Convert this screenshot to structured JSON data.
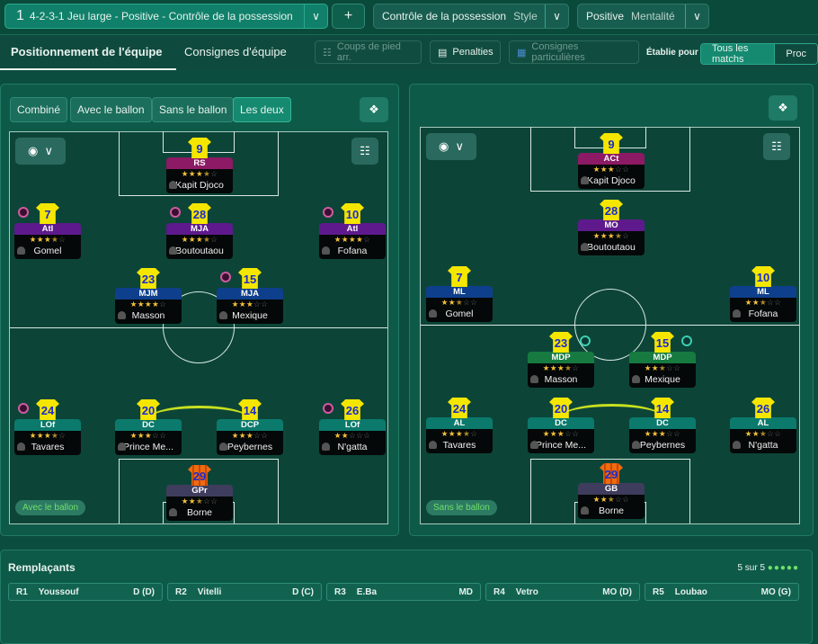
{
  "header": {
    "tactic_number": "1",
    "tactic_name": "4-2-3-1 Jeu large - Positive - Contrôle de la possession",
    "add": "+",
    "style_value": "Contrôle de la possession",
    "style_label": "Style",
    "mentality_value": "Positive",
    "mentality_label": "Mentalité"
  },
  "subnav": {
    "tabs": [
      "Positionnement de l'équipe",
      "Consignes d'équipe"
    ],
    "set_pieces": "Coups de pied arr.",
    "penalties": "Penalties",
    "special": "Consignes particulières",
    "applies_for": "Établie pour",
    "match_options": [
      "Tous les matchs",
      "Proc"
    ]
  },
  "left_panel": {
    "view_tabs": [
      "Combiné",
      "Avec le ballon",
      "Sans le ballon",
      "Les deux"
    ],
    "active_view": "Les deux",
    "mode_badge": "Avec le ballon",
    "players": [
      {
        "num": "9",
        "role": "RS",
        "stars": 3.5,
        "name": "Kapit Djoco",
        "color": "#8c1a64"
      },
      {
        "num": "7",
        "role": "Atl",
        "stars": 3.5,
        "name": "Gomel",
        "color": "#5e1a8c",
        "instr": true
      },
      {
        "num": "28",
        "role": "MJA",
        "stars": 3.5,
        "name": "Boutoutaou",
        "color": "#5e1a8c",
        "instr": true
      },
      {
        "num": "10",
        "role": "Atl",
        "stars": 4,
        "name": "Fofana",
        "color": "#5e1a8c",
        "instr": true
      },
      {
        "num": "23",
        "role": "MJM",
        "stars": 4,
        "name": "Masson",
        "color": "#0e3f8c"
      },
      {
        "num": "15",
        "role": "MJA",
        "stars": 3,
        "name": "Mexique",
        "color": "#0e3f8c",
        "instr": true
      },
      {
        "num": "24",
        "role": "LOf",
        "stars": 3.5,
        "name": "Tavares",
        "color": "#0b7a6c",
        "instr": true
      },
      {
        "num": "20",
        "role": "DC",
        "stars": 3,
        "name": "Prince Me...",
        "color": "#0b7a6c"
      },
      {
        "num": "14",
        "role": "DCP",
        "stars": 3,
        "name": "Peybernes",
        "color": "#0b7a6c"
      },
      {
        "num": "26",
        "role": "LOf",
        "stars": 2,
        "name": "N'gatta",
        "color": "#0b7a6c",
        "instr": true
      },
      {
        "num": "29",
        "role": "GPr",
        "stars": 2.5,
        "name": "Borne",
        "color": "#3f3d5e",
        "gk": true
      }
    ]
  },
  "right_panel": {
    "mode_badge": "Sans le ballon",
    "players": [
      {
        "num": "9",
        "role": "ACt",
        "stars": 3,
        "name": "Kapit Djoco",
        "color": "#8c1a64"
      },
      {
        "num": "28",
        "role": "MO",
        "stars": 3.5,
        "name": "Boutoutaou",
        "color": "#5e1a8c"
      },
      {
        "num": "7",
        "role": "ML",
        "stars": 2.5,
        "name": "Gomel",
        "color": "#0e3f8c"
      },
      {
        "num": "10",
        "role": "ML",
        "stars": 2.5,
        "name": "Fofana",
        "color": "#0e3f8c"
      },
      {
        "num": "23",
        "role": "MDP",
        "stars": 3.5,
        "name": "Masson",
        "color": "#177a40",
        "tinstr": true
      },
      {
        "num": "15",
        "role": "MDP",
        "stars": 2.5,
        "name": "Mexique",
        "color": "#177a40",
        "tinstr": true
      },
      {
        "num": "24",
        "role": "AL",
        "stars": 3.5,
        "name": "Tavares",
        "color": "#0b7a6c"
      },
      {
        "num": "20",
        "role": "DC",
        "stars": 3,
        "name": "Prince Me...",
        "color": "#0b7a6c"
      },
      {
        "num": "14",
        "role": "DC",
        "stars": 3,
        "name": "Peybernes",
        "color": "#0b7a6c"
      },
      {
        "num": "26",
        "role": "AL",
        "stars": 2.5,
        "name": "N'gatta",
        "color": "#0b7a6c"
      },
      {
        "num": "29",
        "role": "GB",
        "stars": 2.5,
        "name": "Borne",
        "color": "#3f3d5e",
        "gk": true
      }
    ]
  },
  "subs": {
    "title": "Remplaçants",
    "count": "5 sur 5",
    "items": [
      {
        "slot": "R1",
        "name": "Youssouf",
        "pos": "D (D)"
      },
      {
        "slot": "R2",
        "name": "Vitelli",
        "pos": "D (C)"
      },
      {
        "slot": "R3",
        "name": "E.Ba",
        "pos": "MD"
      },
      {
        "slot": "R4",
        "name": "Vetro",
        "pos": "MO (D)"
      },
      {
        "slot": "R5",
        "name": "Loubao",
        "pos": "MO (G)"
      }
    ]
  }
}
